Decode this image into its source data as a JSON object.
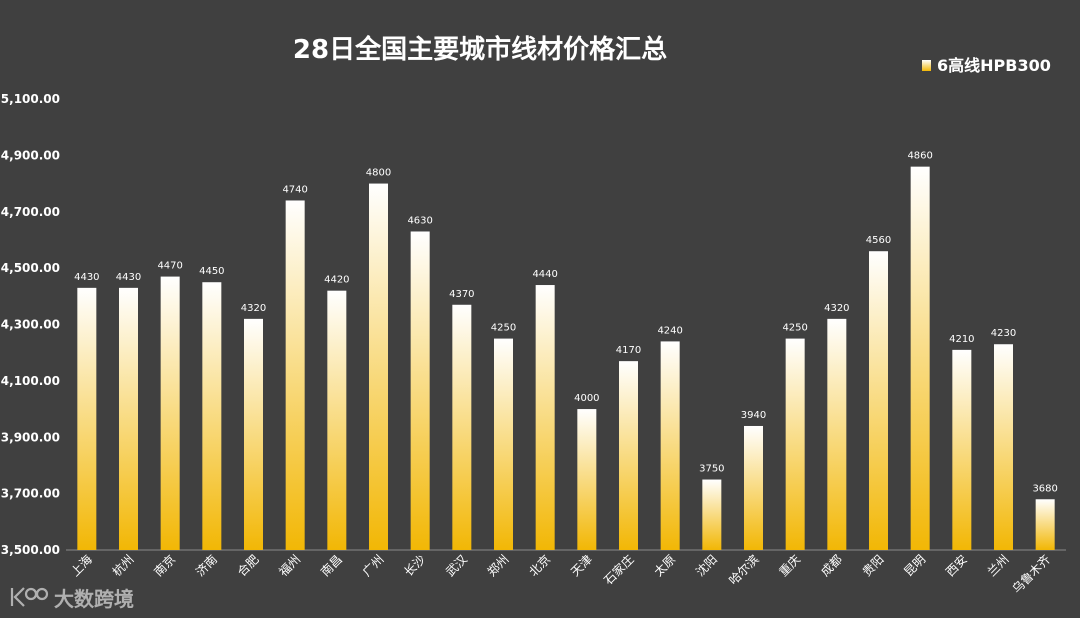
{
  "chart_data": {
    "type": "bar",
    "title": "28日全国主要城市线材价格汇总",
    "categories": [
      "上海",
      "杭州",
      "南京",
      "济南",
      "合肥",
      "福州",
      "南昌",
      "广州",
      "长沙",
      "武汉",
      "郑州",
      "北京",
      "天津",
      "石家庄",
      "太原",
      "沈阳",
      "哈尔滨",
      "重庆",
      "成都",
      "贵阳",
      "昆明",
      "西安",
      "兰州",
      "乌鲁木齐"
    ],
    "series": [
      {
        "name": "6高线HPB300",
        "values": [
          4430,
          4430,
          4470,
          4450,
          4320,
          4740,
          4420,
          4800,
          4630,
          4370,
          4250,
          4440,
          4000,
          4170,
          4240,
          3750,
          3940,
          4250,
          4320,
          4560,
          4860,
          4210,
          4230,
          3680
        ]
      }
    ],
    "yticks": [
      "3,500.00",
      "3,700.00",
      "3,900.00",
      "4,100.00",
      "4,300.00",
      "4,500.00",
      "4,700.00",
      "4,900.00",
      "5,100.00"
    ],
    "ylim": [
      3500,
      5100
    ],
    "xlabel": "",
    "ylabel": "",
    "legend_position": "top-right",
    "colors": {
      "bar_top": "#ffffff",
      "bar_bottom": "#f2b705",
      "background": "#404040",
      "legend_marker": "#f5c842"
    }
  },
  "watermark": {
    "logo_icon": "k100-logo-icon",
    "text": "大数跨境"
  }
}
